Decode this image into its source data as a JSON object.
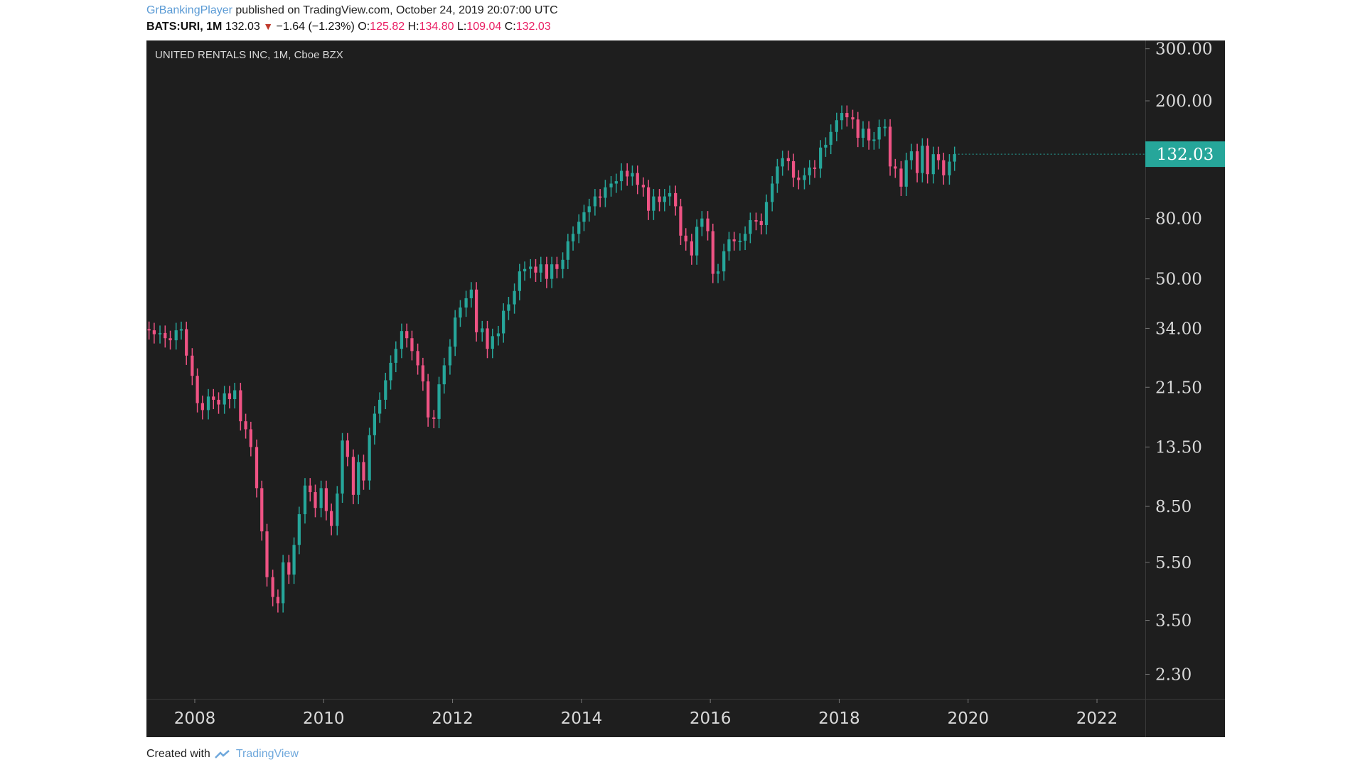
{
  "header": {
    "author": "GrBankingPlayer",
    "published": "published on TradingView.com, October 24, 2019 20:07:00 UTC",
    "symbol": "BATS:URI, 1M",
    "last": "132.03",
    "change": "−1.64 (−1.23%)",
    "o_label": "O:",
    "o_value": "125.82",
    "h_label": "H:",
    "h_value": "134.80",
    "l_label": "L:",
    "l_value": "109.04",
    "c_label": "C:",
    "c_value": "132.03"
  },
  "footer": {
    "created_with": "Created with",
    "brand": "TradingView"
  },
  "colors": {
    "up": "#26a69a",
    "down": "#ef5384",
    "background": "#1e1e1e",
    "axis_text": "#d9d9d9",
    "price_tag": "#26a69a"
  },
  "chart_data": {
    "type": "candlestick",
    "title": "UNITED RENTALS INC, 1M, Cboe BZX",
    "y_scale": "log",
    "ylim": [
      1.9,
      320
    ],
    "xlim": [
      2007.25,
      2022.75
    ],
    "y_ticks": [
      300,
      200,
      80,
      50,
      34,
      21.5,
      13.5,
      8.5,
      5.5,
      3.5,
      2.3
    ],
    "y_tick_labels": [
      "300.00",
      "200.00",
      "80.00",
      "50.00",
      "34.00",
      "21.50",
      "13.50",
      "8.50",
      "5.50",
      "3.50",
      "2.30"
    ],
    "x_ticks": [
      2008,
      2010,
      2012,
      2014,
      2016,
      2018,
      2020,
      2022
    ],
    "x_tick_labels": [
      "2008",
      "2010",
      "2012",
      "2014",
      "2016",
      "2018",
      "2020",
      "2022"
    ],
    "last_price": 132.03,
    "last_price_label": "132.03",
    "monthly_closes": [
      {
        "t": 2007.29,
        "c": 33.5
      },
      {
        "t": 2007.37,
        "c": 32.5
      },
      {
        "t": 2007.46,
        "c": 32.8
      },
      {
        "t": 2007.54,
        "c": 31.5
      },
      {
        "t": 2007.62,
        "c": 31.0
      },
      {
        "t": 2007.71,
        "c": 33.5
      },
      {
        "t": 2007.79,
        "c": 33.8
      },
      {
        "t": 2007.87,
        "c": 27.5
      },
      {
        "t": 2007.96,
        "c": 23.5
      },
      {
        "t": 2008.04,
        "c": 19.0
      },
      {
        "t": 2008.12,
        "c": 18.0
      },
      {
        "t": 2008.21,
        "c": 20.0
      },
      {
        "t": 2008.29,
        "c": 19.5
      },
      {
        "t": 2008.37,
        "c": 18.8
      },
      {
        "t": 2008.46,
        "c": 20.5
      },
      {
        "t": 2008.54,
        "c": 19.6
      },
      {
        "t": 2008.62,
        "c": 21.0
      },
      {
        "t": 2008.71,
        "c": 16.5
      },
      {
        "t": 2008.79,
        "c": 15.5
      },
      {
        "t": 2008.87,
        "c": 13.5
      },
      {
        "t": 2008.96,
        "c": 9.8
      },
      {
        "t": 2009.04,
        "c": 7.0
      },
      {
        "t": 2009.12,
        "c": 4.9
      },
      {
        "t": 2009.21,
        "c": 4.2
      },
      {
        "t": 2009.29,
        "c": 4.0
      },
      {
        "t": 2009.37,
        "c": 5.5
      },
      {
        "t": 2009.46,
        "c": 5.0
      },
      {
        "t": 2009.54,
        "c": 6.3
      },
      {
        "t": 2009.62,
        "c": 8.0
      },
      {
        "t": 2009.71,
        "c": 10.0
      },
      {
        "t": 2009.79,
        "c": 9.5
      },
      {
        "t": 2009.87,
        "c": 8.4
      },
      {
        "t": 2009.96,
        "c": 9.8
      },
      {
        "t": 2010.04,
        "c": 8.2
      },
      {
        "t": 2010.12,
        "c": 7.3
      },
      {
        "t": 2010.21,
        "c": 9.4
      },
      {
        "t": 2010.29,
        "c": 14.2
      },
      {
        "t": 2010.37,
        "c": 12.5
      },
      {
        "t": 2010.46,
        "c": 9.3
      },
      {
        "t": 2010.54,
        "c": 12.0
      },
      {
        "t": 2010.62,
        "c": 10.4
      },
      {
        "t": 2010.71,
        "c": 14.8
      },
      {
        "t": 2010.79,
        "c": 17.5
      },
      {
        "t": 2010.87,
        "c": 19.5
      },
      {
        "t": 2010.96,
        "c": 22.7
      },
      {
        "t": 2011.04,
        "c": 26.0
      },
      {
        "t": 2011.12,
        "c": 29.0
      },
      {
        "t": 2011.21,
        "c": 33.3
      },
      {
        "t": 2011.29,
        "c": 31.5
      },
      {
        "t": 2011.37,
        "c": 28.5
      },
      {
        "t": 2011.46,
        "c": 25.5
      },
      {
        "t": 2011.54,
        "c": 22.5
      },
      {
        "t": 2011.62,
        "c": 17.0
      },
      {
        "t": 2011.71,
        "c": 16.8
      },
      {
        "t": 2011.79,
        "c": 22.0
      },
      {
        "t": 2011.87,
        "c": 25.5
      },
      {
        "t": 2011.96,
        "c": 29.5
      },
      {
        "t": 2012.04,
        "c": 37.0
      },
      {
        "t": 2012.12,
        "c": 40.0
      },
      {
        "t": 2012.21,
        "c": 43.0
      },
      {
        "t": 2012.29,
        "c": 46.0
      },
      {
        "t": 2012.37,
        "c": 33.0
      },
      {
        "t": 2012.46,
        "c": 34.0
      },
      {
        "t": 2012.54,
        "c": 29.0
      },
      {
        "t": 2012.62,
        "c": 32.0
      },
      {
        "t": 2012.71,
        "c": 32.7
      },
      {
        "t": 2012.79,
        "c": 39.0
      },
      {
        "t": 2012.87,
        "c": 41.0
      },
      {
        "t": 2012.96,
        "c": 45.5
      },
      {
        "t": 2013.04,
        "c": 53.0
      },
      {
        "t": 2013.12,
        "c": 54.0
      },
      {
        "t": 2013.21,
        "c": 55.0
      },
      {
        "t": 2013.29,
        "c": 52.5
      },
      {
        "t": 2013.37,
        "c": 56.0
      },
      {
        "t": 2013.46,
        "c": 50.0
      },
      {
        "t": 2013.54,
        "c": 56.0
      },
      {
        "t": 2013.62,
        "c": 54.0
      },
      {
        "t": 2013.71,
        "c": 58.0
      },
      {
        "t": 2013.79,
        "c": 67.0
      },
      {
        "t": 2013.87,
        "c": 71.0
      },
      {
        "t": 2013.96,
        "c": 78.0
      },
      {
        "t": 2014.04,
        "c": 84.0
      },
      {
        "t": 2014.12,
        "c": 88.0
      },
      {
        "t": 2014.21,
        "c": 95.0
      },
      {
        "t": 2014.29,
        "c": 94.0
      },
      {
        "t": 2014.37,
        "c": 102.0
      },
      {
        "t": 2014.46,
        "c": 105.0
      },
      {
        "t": 2014.54,
        "c": 107.0
      },
      {
        "t": 2014.62,
        "c": 116.0
      },
      {
        "t": 2014.71,
        "c": 111.0
      },
      {
        "t": 2014.79,
        "c": 114.0
      },
      {
        "t": 2014.87,
        "c": 104.0
      },
      {
        "t": 2014.96,
        "c": 102.0
      },
      {
        "t": 2015.04,
        "c": 85.0
      },
      {
        "t": 2015.12,
        "c": 95.0
      },
      {
        "t": 2015.21,
        "c": 91.0
      },
      {
        "t": 2015.29,
        "c": 95.0
      },
      {
        "t": 2015.37,
        "c": 97.5
      },
      {
        "t": 2015.46,
        "c": 88.0
      },
      {
        "t": 2015.54,
        "c": 70.0
      },
      {
        "t": 2015.62,
        "c": 67.0
      },
      {
        "t": 2015.71,
        "c": 60.0
      },
      {
        "t": 2015.79,
        "c": 75.0
      },
      {
        "t": 2015.87,
        "c": 80.0
      },
      {
        "t": 2015.96,
        "c": 72.5
      },
      {
        "t": 2016.04,
        "c": 52.0
      },
      {
        "t": 2016.12,
        "c": 53.0
      },
      {
        "t": 2016.21,
        "c": 62.0
      },
      {
        "t": 2016.29,
        "c": 68.0
      },
      {
        "t": 2016.37,
        "c": 67.0
      },
      {
        "t": 2016.46,
        "c": 67.3
      },
      {
        "t": 2016.54,
        "c": 71.0
      },
      {
        "t": 2016.62,
        "c": 79.0
      },
      {
        "t": 2016.71,
        "c": 78.5
      },
      {
        "t": 2016.79,
        "c": 76.0
      },
      {
        "t": 2016.87,
        "c": 91.0
      },
      {
        "t": 2016.96,
        "c": 105.0
      },
      {
        "t": 2017.04,
        "c": 120.0
      },
      {
        "t": 2017.12,
        "c": 128.0
      },
      {
        "t": 2017.21,
        "c": 125.0
      },
      {
        "t": 2017.29,
        "c": 110.0
      },
      {
        "t": 2017.37,
        "c": 108.0
      },
      {
        "t": 2017.46,
        "c": 112.0
      },
      {
        "t": 2017.54,
        "c": 119.0
      },
      {
        "t": 2017.62,
        "c": 118.0
      },
      {
        "t": 2017.71,
        "c": 139.0
      },
      {
        "t": 2017.79,
        "c": 142.0
      },
      {
        "t": 2017.87,
        "c": 157.0
      },
      {
        "t": 2017.96,
        "c": 172.0
      },
      {
        "t": 2018.04,
        "c": 182.0
      },
      {
        "t": 2018.12,
        "c": 176.0
      },
      {
        "t": 2018.21,
        "c": 173.0
      },
      {
        "t": 2018.29,
        "c": 150.0
      },
      {
        "t": 2018.37,
        "c": 161.0
      },
      {
        "t": 2018.46,
        "c": 147.0
      },
      {
        "t": 2018.54,
        "c": 148.0
      },
      {
        "t": 2018.62,
        "c": 163.0
      },
      {
        "t": 2018.71,
        "c": 163.5
      },
      {
        "t": 2018.79,
        "c": 120.0
      },
      {
        "t": 2018.87,
        "c": 118.0
      },
      {
        "t": 2018.96,
        "c": 102.5
      },
      {
        "t": 2019.04,
        "c": 126.0
      },
      {
        "t": 2019.12,
        "c": 135.0
      },
      {
        "t": 2019.21,
        "c": 114.0
      },
      {
        "t": 2019.29,
        "c": 141.0
      },
      {
        "t": 2019.37,
        "c": 113.0
      },
      {
        "t": 2019.46,
        "c": 132.0
      },
      {
        "t": 2019.54,
        "c": 126.0
      },
      {
        "t": 2019.62,
        "c": 112.0
      },
      {
        "t": 2019.71,
        "c": 124.6
      },
      {
        "t": 2019.79,
        "c": 132.03
      }
    ]
  }
}
